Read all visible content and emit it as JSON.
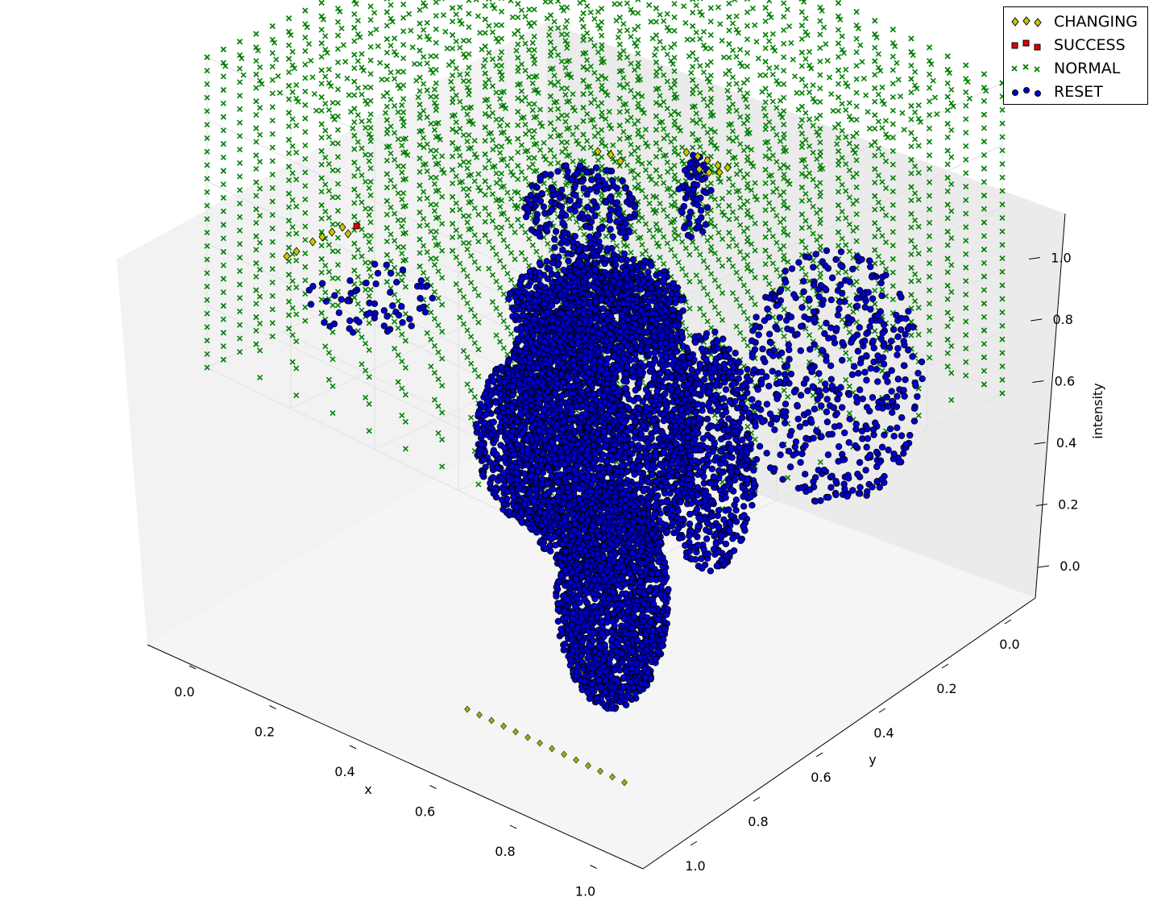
{
  "chart_data": {
    "type": "scatter3d",
    "xlabel": "x",
    "ylabel": "y",
    "zlabel": "intensity",
    "xlim": [
      0.0,
      1.0
    ],
    "ylim": [
      0.0,
      1.0
    ],
    "zlim": [
      0.0,
      1.0
    ],
    "x_ticks": [
      "0.0",
      "0.2",
      "0.4",
      "0.6",
      "0.8",
      "1.0"
    ],
    "y_ticks": [
      "0.0",
      "0.2",
      "0.4",
      "0.6",
      "0.8",
      "1.0"
    ],
    "z_ticks": [
      "0.0",
      "0.2",
      "0.4",
      "0.6",
      "0.8",
      "1.0"
    ],
    "legend_position": "top-right",
    "series": [
      {
        "name": "CHANGING",
        "marker": "diamond",
        "color": "#c8c800",
        "points": [
          [
            0.05,
            0.05,
            0.93
          ],
          [
            0.05,
            0.1,
            0.93
          ],
          [
            0.1,
            0.05,
            0.93
          ],
          [
            0.45,
            0.05,
            0.97
          ],
          [
            0.5,
            0.1,
            0.97
          ]
        ]
      },
      {
        "name": "SUCCESS",
        "marker": "square",
        "color": "#e00000",
        "points": [
          [
            0.1,
            0.1,
            0.93
          ]
        ]
      },
      {
        "name": "NORMAL",
        "marker": "x",
        "color": "#008000",
        "description_grid": "regular grid filling the unit cube"
      },
      {
        "name": "RESET",
        "marker": "circle",
        "color": "#0000cc",
        "points": [
          [
            0.4,
            0.5,
            0.5
          ],
          [
            0.5,
            0.5,
            0.3
          ],
          [
            0.6,
            0.6,
            0.1
          ],
          [
            0.35,
            0.45,
            0.8
          ],
          [
            0.7,
            0.3,
            0.6
          ],
          [
            0.2,
            0.8,
            0.8
          ]
        ]
      }
    ]
  },
  "legend": {
    "items": [
      {
        "label": "CHANGING",
        "color": "#c8c800",
        "icon": "diamond-marker"
      },
      {
        "label": "SUCCESS",
        "color": "#e00000",
        "icon": "square-marker"
      },
      {
        "label": "NORMAL",
        "color": "#008000",
        "icon": "x-marker"
      },
      {
        "label": "RESET",
        "color": "#0000cc",
        "icon": "circle-marker"
      }
    ]
  }
}
